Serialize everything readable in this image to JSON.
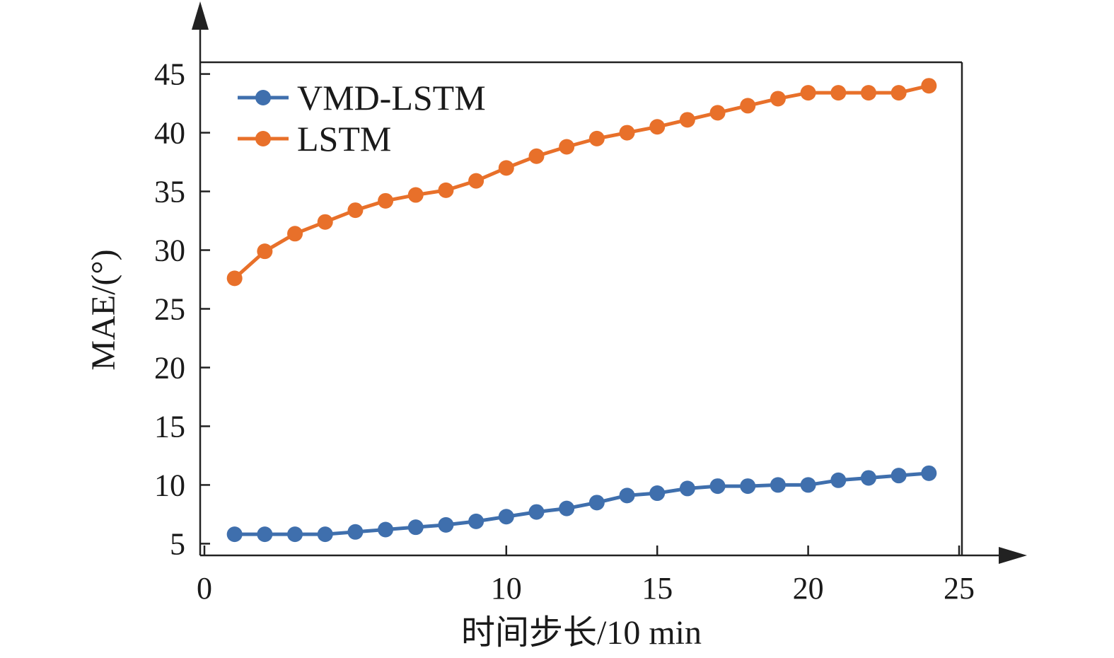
{
  "chart_data": {
    "type": "line",
    "title": "",
    "xlabel": "时间步长/10 min",
    "ylabel": "MAE/(°)",
    "xlim": [
      0,
      25
    ],
    "ylim": [
      4,
      46
    ],
    "x_ticks": [
      0,
      10,
      15,
      20,
      25
    ],
    "y_ticks": [
      5,
      10,
      15,
      20,
      25,
      30,
      35,
      40,
      45
    ],
    "grid": false,
    "legend_position": "top-left",
    "x": [
      1,
      2,
      3,
      4,
      5,
      6,
      7,
      8,
      9,
      10,
      11,
      12,
      13,
      14,
      15,
      16,
      17,
      18,
      19,
      20,
      21,
      22,
      23,
      24
    ],
    "series": [
      {
        "name": "VMD-LSTM",
        "color": "#3f6fad",
        "values": [
          5.8,
          5.8,
          5.8,
          5.8,
          6.0,
          6.2,
          6.4,
          6.6,
          6.9,
          7.3,
          7.7,
          8.0,
          8.5,
          9.1,
          9.3,
          9.7,
          9.9,
          9.9,
          10.0,
          10.0,
          10.4,
          10.6,
          10.8,
          11.0
        ]
      },
      {
        "name": "LSTM",
        "color": "#e8702a",
        "values": [
          27.6,
          29.9,
          31.4,
          32.4,
          33.4,
          34.2,
          34.7,
          35.1,
          35.9,
          37.0,
          38.0,
          38.8,
          39.5,
          40.0,
          40.5,
          41.1,
          41.7,
          42.3,
          42.9,
          43.4,
          43.4,
          43.4,
          43.4,
          44.0
        ]
      }
    ]
  }
}
